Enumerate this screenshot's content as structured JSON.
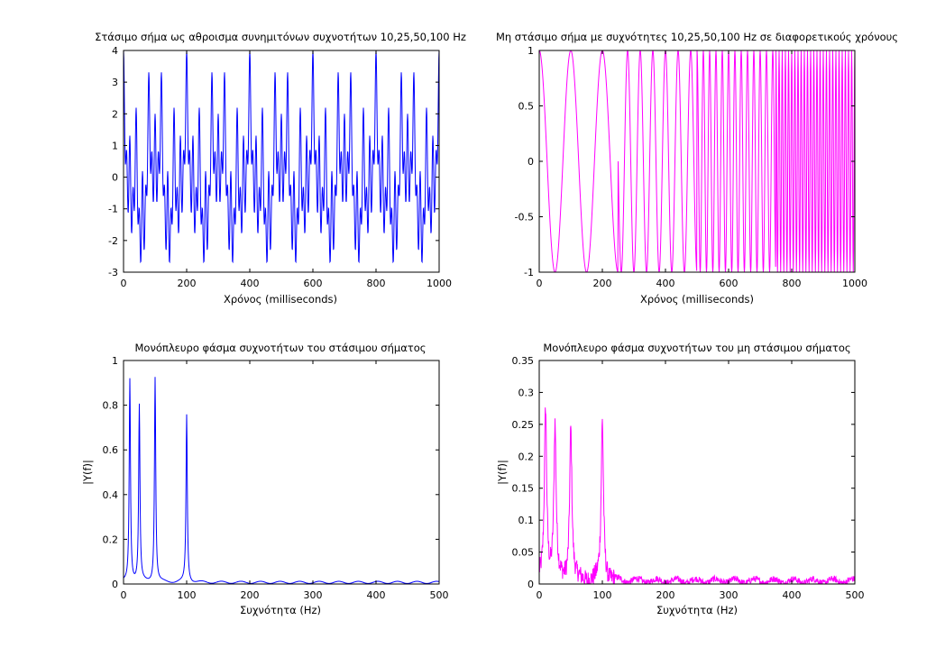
{
  "figure": {
    "background": "#ffffff"
  },
  "chart_data": [
    {
      "id": "stationary-signal",
      "type": "line",
      "title": "Στάσιμο σήμα ως αθροισμα συνημιτόνων συχνοτήτων 10,25,50,100 Hz",
      "xlabel": "Χρόνος (milliseconds)",
      "ylabel": "",
      "xlim": [
        0,
        1000
      ],
      "ylim": [
        -3,
        4
      ],
      "xticks": [
        0,
        200,
        400,
        600,
        800,
        1000
      ],
      "yticks": [
        -3,
        -2,
        -1,
        0,
        1,
        2,
        3,
        4
      ],
      "grid": false,
      "color": "#0000ff",
      "signal": {
        "kind": "sum-of-cosines",
        "frequencies_hz": [
          10,
          25,
          50,
          100
        ],
        "sample_rate_hz": 1000,
        "x_unit": "ms"
      }
    },
    {
      "id": "nonstationary-signal",
      "type": "line",
      "title": "Μη στάσιμο σήμα με συχνότητες 10,25,50,100 Hz σε διαφορετικούς χρόνους",
      "xlabel": "Χρόνος (milliseconds)",
      "ylabel": "",
      "xlim": [
        0,
        1000
      ],
      "ylim": [
        -1,
        1
      ],
      "xticks": [
        0,
        200,
        400,
        600,
        800,
        1000
      ],
      "yticks": [
        -1,
        -0.5,
        0,
        0.5,
        1
      ],
      "grid": false,
      "color": "#ff00ff",
      "signal": {
        "kind": "piecewise-cosine",
        "segments": [
          {
            "t_start_ms": 0,
            "t_end_ms": 250,
            "freq_hz": 10
          },
          {
            "t_start_ms": 250,
            "t_end_ms": 500,
            "freq_hz": 25
          },
          {
            "t_start_ms": 500,
            "t_end_ms": 750,
            "freq_hz": 50
          },
          {
            "t_start_ms": 750,
            "t_end_ms": 1000,
            "freq_hz": 100
          }
        ],
        "sample_rate_hz": 1000
      }
    },
    {
      "id": "stationary-spectrum",
      "type": "line",
      "title": "Μονόπλευρο φάσμα συχνοτήτων του στάσιμου σήματος",
      "xlabel": "Συχνότητα (Hz)",
      "ylabel": "|Y(f)|",
      "xlim": [
        0,
        500
      ],
      "ylim": [
        0,
        1
      ],
      "xticks": [
        0,
        100,
        200,
        300,
        400,
        500
      ],
      "yticks": [
        0,
        0.2,
        0.4,
        0.6,
        0.8,
        1
      ],
      "grid": false,
      "color": "#0000ff",
      "peaks": [
        {
          "freq_hz": 10,
          "magnitude": 0.91
        },
        {
          "freq_hz": 25,
          "magnitude": 0.79
        },
        {
          "freq_hz": 50,
          "magnitude": 0.92
        },
        {
          "freq_hz": 100,
          "magnitude": 0.75
        }
      ]
    },
    {
      "id": "nonstationary-spectrum",
      "type": "line",
      "title": "Μονόπλευρο φάσμα συχνοτήτων του μη στάσιμου σήματος",
      "xlabel": "Συχνότητα (Hz)",
      "ylabel": "|Y(f)|",
      "xlim": [
        0,
        500
      ],
      "ylim": [
        0,
        0.35
      ],
      "xticks": [
        0,
        100,
        200,
        300,
        400,
        500
      ],
      "yticks": [
        0,
        0.05,
        0.1,
        0.15,
        0.2,
        0.25,
        0.3,
        0.35
      ],
      "grid": false,
      "color": "#ff00ff",
      "peaks": [
        {
          "freq_hz": 10,
          "magnitude": 0.27
        },
        {
          "freq_hz": 25,
          "magnitude": 0.24
        },
        {
          "freq_hz": 50,
          "magnitude": 0.24
        },
        {
          "freq_hz": 100,
          "magnitude": 0.25
        }
      ]
    }
  ]
}
